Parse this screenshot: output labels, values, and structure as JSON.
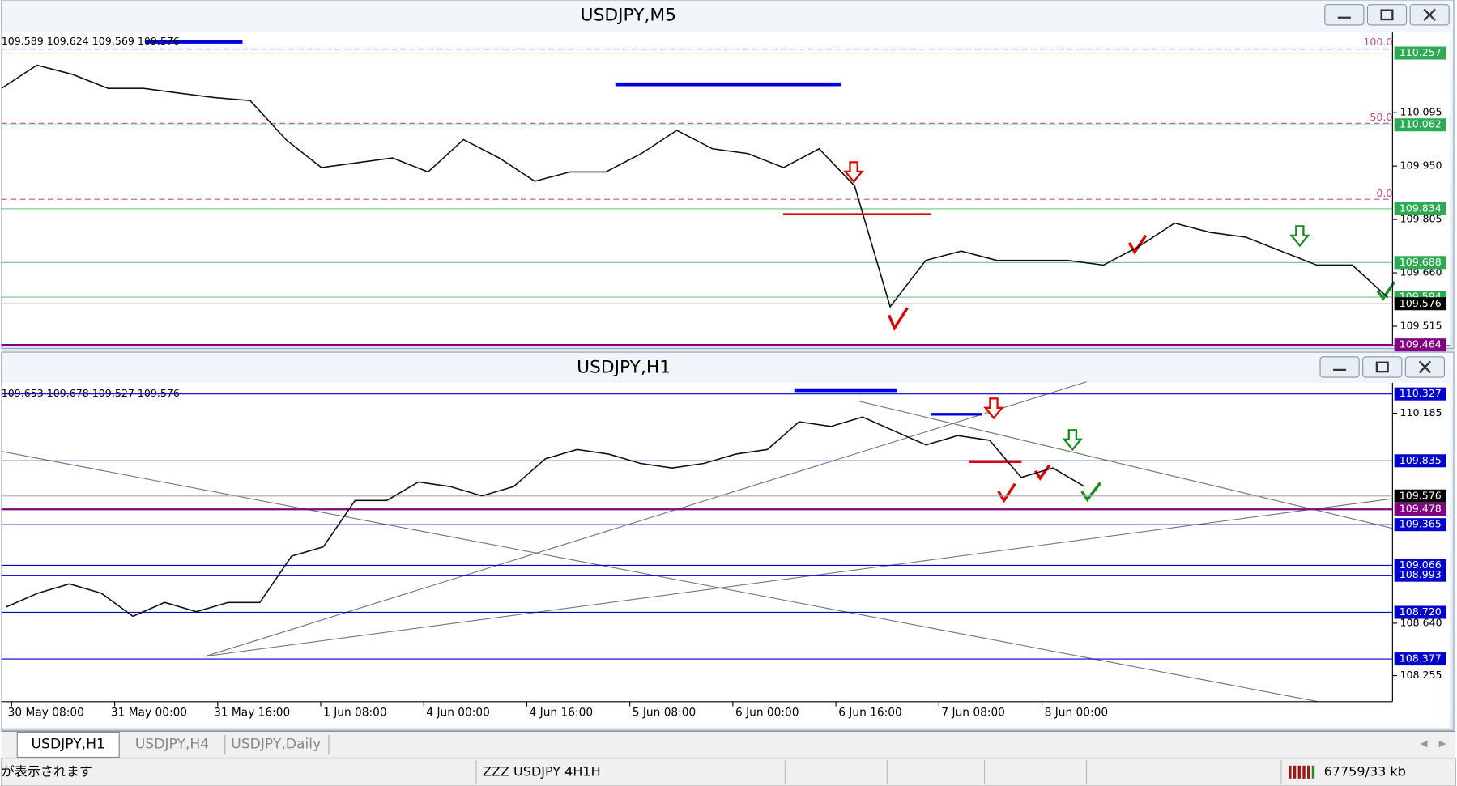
{
  "windows": [
    {
      "title": "USDJPY,M5",
      "ohlc": "109.589 109.624 109.569 109.576",
      "ylim": [
        109.462,
        110.313
      ],
      "yticks": [
        110.095,
        {
          "value": 109.95,
          "label": "109.950"
        },
        109.805,
        {
          "value": 109.66,
          "label": "109.660"
        },
        109.515
      ],
      "levels": [
        {
          "value": 110.257,
          "color": "#2eaa55"
        },
        {
          "value": 110.062,
          "color": "#2eaa55"
        },
        {
          "value": 109.834,
          "color": "#2eaa55"
        },
        {
          "value": 109.688,
          "color": "#2eaa55"
        },
        {
          "value": 109.594,
          "color": "#2eaa55"
        },
        {
          "value": 109.464,
          "color": "#800080"
        }
      ],
      "current": 109.576,
      "fib": [
        {
          "value": 100,
          "label": "100.0"
        },
        {
          "value": 50,
          "label": "50.0"
        },
        {
          "value": 0,
          "label": "0.0"
        }
      ],
      "closes": [
        110.161,
        110.224,
        110.199,
        110.161,
        110.161,
        110.148,
        110.136,
        110.128,
        110.022,
        109.946,
        109.959,
        109.972,
        109.934,
        110.022,
        109.972,
        109.909,
        109.934,
        109.934,
        109.984,
        110.047,
        109.997,
        109.984,
        109.946,
        109.997,
        109.896,
        109.568,
        109.694,
        109.719,
        109.694,
        109.694,
        109.694,
        109.681,
        109.732,
        109.795,
        109.77,
        109.757,
        109.719,
        109.681,
        109.681,
        109.593
      ]
    },
    {
      "title": "USDJPY,H1",
      "ohlc": "109.653 109.678 109.527 109.576",
      "ylim": [
        108.063,
        110.409
      ],
      "yticks": [
        110.185,
        {
          "value": 108.64,
          "label": "108.640"
        },
        108.255
      ],
      "levels": [
        {
          "value": 110.327,
          "color": "#0000cc"
        },
        {
          "value": 109.835,
          "color": "#0000cc"
        },
        {
          "value": 109.478,
          "color": "#800080"
        },
        {
          "value": 109.365,
          "color": "#0000cc"
        },
        {
          "value": 109.066,
          "color": "#0000cc"
        },
        {
          "value": 108.993,
          "color": "#0000cc"
        },
        {
          "value": 108.72,
          "label": "108.720",
          "color": "#0000cc"
        },
        {
          "value": 108.377,
          "color": "#0000cc"
        }
      ],
      "current": 109.576,
      "times": [
        "30 May 08:00",
        "31 May 00:00",
        "31 May 16:00",
        "1 Jun 08:00",
        "4 Jun 00:00",
        "4 Jun 16:00",
        "5 Jun 08:00",
        "6 Jun 00:00",
        "6 Jun 16:00",
        "7 Jun 08:00",
        "8 Jun 00:00"
      ],
      "closes": [
        108.759,
        108.861,
        108.929,
        108.861,
        108.691,
        108.793,
        108.725,
        108.793,
        108.793,
        109.134,
        109.202,
        109.543,
        109.543,
        109.679,
        109.645,
        109.577,
        109.645,
        109.85,
        109.918,
        109.884,
        109.816,
        109.782,
        109.816,
        109.884,
        109.918,
        110.122,
        110.088,
        110.157,
        110.054,
        109.952,
        110.02,
        109.986,
        109.713,
        109.782,
        109.645
      ]
    }
  ],
  "tabs": [
    "USDJPY,H1",
    "USDJPY,H4",
    "USDJPY,Daily"
  ],
  "status": {
    "message": "が表示されます",
    "profile": "ZZZ USDJPY 4H1H",
    "traffic": "67759/33 kb"
  }
}
